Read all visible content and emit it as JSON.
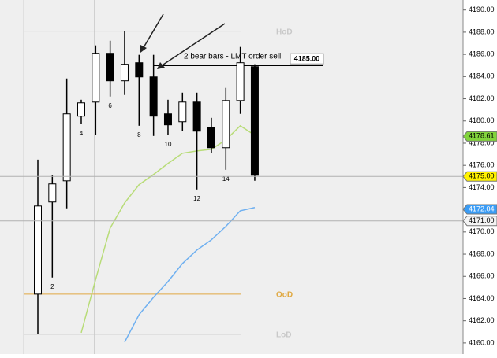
{
  "chart_data": {
    "type": "candlestick",
    "annotation": "2 bear bars - LMT order sell",
    "ylim": [
      4159.0,
      4190.9
    ],
    "yticks": [
      {
        "value": 4160,
        "label": "4160.00"
      },
      {
        "value": 4162,
        "label": "4162.00"
      },
      {
        "value": 4164,
        "label": "4164.00"
      },
      {
        "value": 4166,
        "label": "4166.00"
      },
      {
        "value": 4168,
        "label": "4168.00"
      },
      {
        "value": 4170,
        "label": "4170.00"
      },
      {
        "value": 4172,
        "label": "4172.00"
      },
      {
        "value": 4174,
        "label": "4174.00"
      },
      {
        "value": 4176,
        "label": "4176.00"
      },
      {
        "value": 4178,
        "label": "4178.00"
      },
      {
        "value": 4180,
        "label": "4180.00"
      },
      {
        "value": 4182,
        "label": "4182.00"
      },
      {
        "value": 4184,
        "label": "4184.00"
      },
      {
        "value": 4186,
        "label": "4186.00"
      },
      {
        "value": 4188,
        "label": "4188.00"
      },
      {
        "value": 4190,
        "label": "4190.00"
      }
    ],
    "categories": [
      null,
      "2",
      null,
      "4",
      null,
      "6",
      null,
      "8",
      null,
      "10",
      null,
      "12",
      null,
      "14",
      null,
      null
    ],
    "open": [
      4164.4,
      4172.7,
      4174.61,
      4180.43,
      4181.7,
      4186.1,
      4183.62,
      4185.25,
      4183.97,
      4180.64,
      4179.93,
      4181.7,
      4179.43,
      4177.59,
      4181.84,
      4184.89
    ],
    "high": [
      4176.52,
      4175.11,
      4183.83,
      4181.91,
      4186.81,
      4187.23,
      4188.09,
      4185.96,
      4185.96,
      4181.91,
      4182.55,
      4182.55,
      4180.28,
      4182.98,
      4186.67,
      4185.11
    ],
    "low": [
      4160.78,
      4165.89,
      4172.13,
      4179.72,
      4178.72,
      4182.2,
      4182.34,
      4179.57,
      4178.65,
      4178.72,
      4179.08,
      4173.83,
      4177.09,
      4175.6,
      4180.64,
      4174.61
    ],
    "close": [
      4172.34,
      4174.33,
      4180.64,
      4181.63,
      4186.1,
      4183.62,
      4185.11,
      4183.97,
      4180.43,
      4179.65,
      4181.7,
      4179.08,
      4177.59,
      4181.84,
      4185.25,
      4175.11
    ],
    "series": [
      {
        "color": "#b8dc78",
        "values": [
          null,
          null,
          null,
          4160.92,
          4165.74,
          4170.35,
          4172.62,
          4174.26,
          4175.18,
          4176.17,
          4177.09,
          4177.3,
          4177.45,
          4178.3,
          4179.57,
          4178.72
        ]
      },
      {
        "color": "#6fb0f0",
        "values": [
          null,
          null,
          null,
          null,
          null,
          null,
          4160.07,
          4162.55,
          4164.11,
          4165.53,
          4167.16,
          4168.37,
          4169.29,
          4170.5,
          4171.91,
          4172.2
        ]
      }
    ],
    "levels": [
      {
        "label": "HoD",
        "value": 4188.09,
        "color": "#c8c8c8"
      },
      {
        "label": "OoD",
        "value": 4164.4,
        "color": "#e0a840"
      },
      {
        "label": "LoD",
        "value": 4160.78,
        "color": "#c8c8c8"
      }
    ],
    "order_line": {
      "value": 4185,
      "label": "4185.00"
    },
    "price_tags": [
      {
        "value": 4178.61,
        "color": "#82d43c",
        "text_color": "#000000"
      },
      {
        "value": 4175,
        "label": "4175.00",
        "color": "#fff200",
        "text_color": "#000000"
      },
      {
        "value": 4172.04,
        "color": "#3a9cf5",
        "text_color": "#ffffff"
      },
      {
        "value": 4171,
        "label": "4171.00",
        "color": "#f4f4f4",
        "text_color": "#000000"
      }
    ]
  }
}
